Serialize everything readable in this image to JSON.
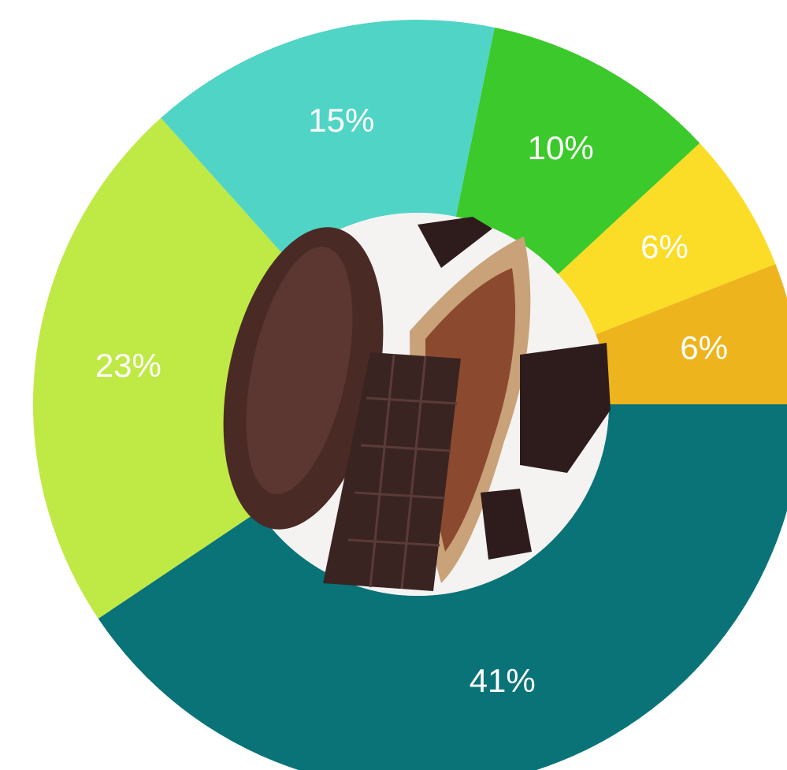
{
  "chart_data": {
    "type": "pie",
    "values": [
      41,
      23,
      15,
      10,
      6,
      6
    ],
    "value_labels": [
      "41%",
      "23%",
      "15%",
      "10%",
      "6%",
      "6%"
    ],
    "colors": [
      "#0a7378",
      "#bfe945",
      "#50d4c6",
      "#3cc92b",
      "#fbdc26",
      "#eeb41e"
    ]
  }
}
